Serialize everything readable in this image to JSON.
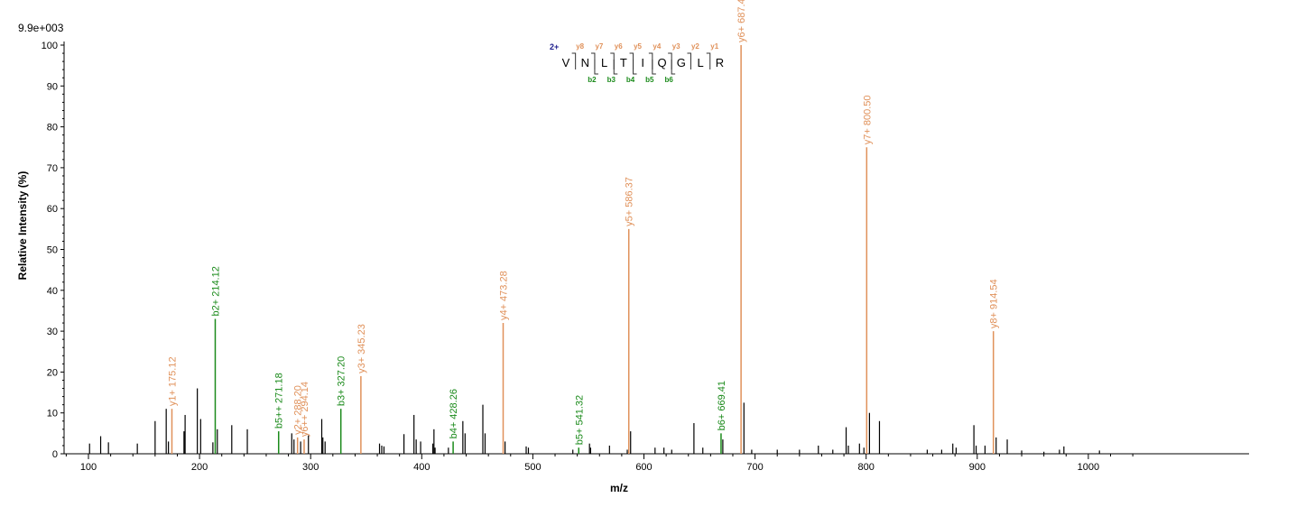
{
  "colors": {
    "y_ion": "#e0915a",
    "b_ion": "#1a8a1a",
    "unassigned": "#000000",
    "axis": "#000000",
    "charge": "#1c1c8c"
  },
  "scale_label": "9.9e+003",
  "chart_data": {
    "type": "bar",
    "xlabel": "m/z",
    "ylabel": "Relative   Intensity (%)",
    "xlim": [
      80,
      1045
    ],
    "ylim": [
      0,
      100
    ],
    "x_ticks": [
      "100",
      "200",
      "300",
      "400",
      "500",
      "600",
      "700",
      "800",
      "900",
      "1000"
    ],
    "y_ticks": [
      "0",
      "10",
      "20",
      "30",
      "40",
      "50",
      "60",
      "70",
      "80",
      "90",
      "100"
    ],
    "peptide": {
      "charge": "2+",
      "residues": [
        "V",
        "N",
        "L",
        "T",
        "I",
        "Q",
        "G",
        "L",
        "R"
      ],
      "y_ions": [
        {
          "label": "y8",
          "after": 0
        },
        {
          "label": "y7",
          "after": 1
        },
        {
          "label": "y6",
          "after": 2
        },
        {
          "label": "y5",
          "after": 3
        },
        {
          "label": "y4",
          "after": 4
        },
        {
          "label": "y3",
          "after": 5
        },
        {
          "label": "y2",
          "after": 6
        },
        {
          "label": "y1",
          "after": 7
        }
      ],
      "b_ions": [
        {
          "label": "b2",
          "after": 1
        },
        {
          "label": "b3",
          "after": 2
        },
        {
          "label": "b4",
          "after": 3
        },
        {
          "label": "b5",
          "after": 4
        },
        {
          "label": "b6",
          "after": 5
        }
      ]
    },
    "annotated_peaks": [
      {
        "mz": 175.12,
        "intensity": 11,
        "ion": "y",
        "label": "y1+ 175.12"
      },
      {
        "mz": 214.12,
        "intensity": 33,
        "ion": "b",
        "label": "b2+ 214.12"
      },
      {
        "mz": 271.18,
        "intensity": 5.5,
        "ion": "b",
        "label": "b5++ 271.18"
      },
      {
        "mz": 288.2,
        "intensity": 4,
        "ion": "y",
        "label": "y2+ 288.20"
      },
      {
        "mz": 294.14,
        "intensity": 3.5,
        "ion": "y",
        "label": "y6++ 294.14"
      },
      {
        "mz": 327.2,
        "intensity": 11,
        "ion": "b",
        "label": "b3+ 327.20"
      },
      {
        "mz": 345.23,
        "intensity": 19,
        "ion": "y",
        "label": "y3+ 345.23"
      },
      {
        "mz": 428.26,
        "intensity": 3,
        "ion": "b",
        "label": "b4+ 428.26"
      },
      {
        "mz": 473.28,
        "intensity": 32,
        "ion": "y",
        "label": "y4+ 473.28"
      },
      {
        "mz": 541.32,
        "intensity": 1.5,
        "ion": "b",
        "label": "b5+ 541.32"
      },
      {
        "mz": 586.37,
        "intensity": 55,
        "ion": "y",
        "label": "y5+ 586.37"
      },
      {
        "mz": 669.41,
        "intensity": 5,
        "ion": "b",
        "label": "b6+ 669.41"
      },
      {
        "mz": 687.42,
        "intensity": 100,
        "ion": "y",
        "label": "y6+ 687.42"
      },
      {
        "mz": 800.5,
        "intensity": 75,
        "ion": "y",
        "label": "y7+ 800.50"
      },
      {
        "mz": 914.54,
        "intensity": 30,
        "ion": "y",
        "label": "y8+ 914.54"
      }
    ],
    "unassigned_peaks": [
      [
        101,
        2.5
      ],
      [
        111,
        4.3
      ],
      [
        118,
        2.8
      ],
      [
        144,
        2.5
      ],
      [
        160,
        8
      ],
      [
        170,
        11
      ],
      [
        172,
        3
      ],
      [
        186,
        5.5
      ],
      [
        187,
        9.5
      ],
      [
        198,
        16
      ],
      [
        201,
        8.5
      ],
      [
        212,
        2.8
      ],
      [
        216,
        6
      ],
      [
        229,
        7
      ],
      [
        243,
        6
      ],
      [
        283,
        5
      ],
      [
        285,
        3.5
      ],
      [
        291,
        3
      ],
      [
        298,
        4.5
      ],
      [
        310,
        8.5
      ],
      [
        311,
        4
      ],
      [
        313,
        3
      ],
      [
        362,
        2.5
      ],
      [
        364,
        2
      ],
      [
        366,
        1.8
      ],
      [
        384,
        4.8
      ],
      [
        393,
        9.5
      ],
      [
        395,
        3.5
      ],
      [
        399,
        3
      ],
      [
        410,
        2.5
      ],
      [
        411,
        6
      ],
      [
        412,
        1.5
      ],
      [
        424,
        1.5
      ],
      [
        437,
        8
      ],
      [
        439,
        5
      ],
      [
        455,
        12
      ],
      [
        457,
        5
      ],
      [
        475,
        3
      ],
      [
        494,
        1.8
      ],
      [
        496,
        1.5
      ],
      [
        536,
        1
      ],
      [
        551,
        2.5
      ],
      [
        552,
        1.5
      ],
      [
        569,
        2
      ],
      [
        585,
        1
      ],
      [
        588,
        5.5
      ],
      [
        610,
        1.5
      ],
      [
        618,
        1.5
      ],
      [
        625,
        1
      ],
      [
        645,
        7.5
      ],
      [
        653,
        1.5
      ],
      [
        671,
        3.5
      ],
      [
        690,
        12.5
      ],
      [
        697,
        1
      ],
      [
        720,
        1
      ],
      [
        740,
        1
      ],
      [
        757,
        2
      ],
      [
        770,
        1
      ],
      [
        782,
        6.5
      ],
      [
        784,
        2
      ],
      [
        794,
        2.5
      ],
      [
        798,
        1.5
      ],
      [
        803,
        10
      ],
      [
        812,
        8
      ],
      [
        855,
        1
      ],
      [
        868,
        1
      ],
      [
        878,
        2.5
      ],
      [
        881,
        1.5
      ],
      [
        897,
        7
      ],
      [
        899,
        2
      ],
      [
        907,
        2
      ],
      [
        917,
        4
      ],
      [
        927,
        3.5
      ],
      [
        940,
        0.8
      ],
      [
        960,
        0.5
      ],
      [
        974,
        1
      ],
      [
        978,
        1.8
      ],
      [
        1010,
        0.8
      ]
    ]
  }
}
